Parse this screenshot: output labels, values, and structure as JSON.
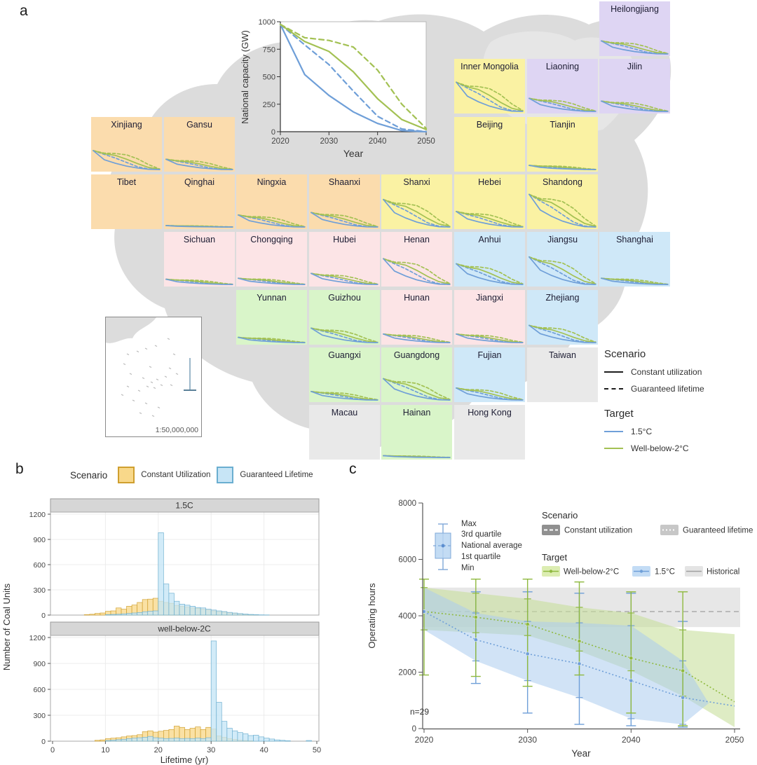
{
  "figure": {
    "panel_a_label": "a",
    "panel_b_label": "b",
    "panel_c_label": "c"
  },
  "panel_a": {
    "inset_map": {
      "scale_text": "1:50,000,000"
    },
    "legend": {
      "scenario_title": "Scenario",
      "scenario_items": [
        {
          "label": "Constant utilization",
          "style": "solid"
        },
        {
          "label": "Guaranteed lifetime",
          "style": "dashed"
        }
      ],
      "target_title": "Target",
      "target_items": [
        {
          "label": "1.5°C",
          "color": "#6f9fd8"
        },
        {
          "label": "Well-below-2°C",
          "color": "#a3c153"
        }
      ]
    },
    "region_colors": {
      "northeast": "#ded5f3",
      "north": "#faf2a3",
      "northwest": "#fbdcad",
      "central": "#fce4e6",
      "east": "#cfe8f8",
      "south": "#d9f5c9",
      "nodata": "#e9e9e9"
    },
    "tile_series": [
      {
        "name": "Well-below-2C Guaranteed lifetime",
        "color": "#a3c153",
        "dash": "4 3",
        "profile": [
          1,
          0.87,
          0.85,
          0.78,
          0.57,
          0.26,
          0.03
        ]
      },
      {
        "name": "1.5C Guaranteed lifetime",
        "color": "#6f9fd8",
        "dash": "4 3",
        "profile": [
          1,
          0.8,
          0.61,
          0.38,
          0.15,
          0.03,
          0
        ]
      },
      {
        "name": "Well-below-2C Constant utilization",
        "color": "#a3c153",
        "dash": "",
        "profile": [
          1,
          0.84,
          0.75,
          0.55,
          0.31,
          0.11,
          0.02
        ]
      },
      {
        "name": "1.5C Constant utilization",
        "color": "#6f9fd8",
        "dash": "",
        "profile": [
          1,
          0.52,
          0.33,
          0.18,
          0.08,
          0.01,
          0
        ]
      }
    ],
    "provinces": [
      {
        "name": "Heilongjiang",
        "region": "northeast",
        "row": 1,
        "col": 8,
        "amp": 0.38
      },
      {
        "name": "Inner Mongolia",
        "region": "north",
        "row": 2,
        "col": 6,
        "amp": 0.85
      },
      {
        "name": "Liaoning",
        "region": "northeast",
        "row": 2,
        "col": 7,
        "amp": 0.38
      },
      {
        "name": "Jilin",
        "region": "northeast",
        "row": 2,
        "col": 8,
        "amp": 0.3
      },
      {
        "name": "Xinjiang",
        "region": "northwest",
        "row": 3,
        "col": 1,
        "amp": 0.55
      },
      {
        "name": "Gansu",
        "region": "northwest",
        "row": 3,
        "col": 2,
        "amp": 0.3
      },
      {
        "name": "Beijing",
        "region": "north",
        "row": 3,
        "col": 6,
        "amp": 0
      },
      {
        "name": "Tianjin",
        "region": "north",
        "row": 3,
        "col": 7,
        "amp": 0.12
      },
      {
        "name": "Tibet",
        "region": "northwest",
        "row": 4,
        "col": 1,
        "amp": 0
      },
      {
        "name": "Qinghai",
        "region": "northwest",
        "row": 4,
        "col": 2,
        "amp": 0.04
      },
      {
        "name": "Ningxia",
        "region": "northwest",
        "row": 4,
        "col": 3,
        "amp": 0.35
      },
      {
        "name": "Shaanxi",
        "region": "northwest",
        "row": 4,
        "col": 4,
        "amp": 0.42
      },
      {
        "name": "Shanxi",
        "region": "north",
        "row": 4,
        "col": 5,
        "amp": 0.8
      },
      {
        "name": "Hebei",
        "region": "north",
        "row": 4,
        "col": 6,
        "amp": 0.45
      },
      {
        "name": "Shandong",
        "region": "north",
        "row": 4,
        "col": 7,
        "amp": 0.95
      },
      {
        "name": "Sichuan",
        "region": "central",
        "row": 5,
        "col": 2,
        "amp": 0.15
      },
      {
        "name": "Chongqing",
        "region": "central",
        "row": 5,
        "col": 3,
        "amp": 0.18
      },
      {
        "name": "Hubei",
        "region": "central",
        "row": 5,
        "col": 4,
        "amp": 0.32
      },
      {
        "name": "Henan",
        "region": "central",
        "row": 5,
        "col": 5,
        "amp": 0.75
      },
      {
        "name": "Anhui",
        "region": "east",
        "row": 5,
        "col": 6,
        "amp": 0.6
      },
      {
        "name": "Jiangsu",
        "region": "east",
        "row": 5,
        "col": 7,
        "amp": 0.8
      },
      {
        "name": "Shanghai",
        "region": "east",
        "row": 5,
        "col": 8,
        "amp": 0.18
      },
      {
        "name": "Yunnan",
        "region": "south",
        "row": 6,
        "col": 3,
        "amp": 0.15
      },
      {
        "name": "Guizhou",
        "region": "south",
        "row": 6,
        "col": 4,
        "amp": 0.42
      },
      {
        "name": "Hunan",
        "region": "central",
        "row": 6,
        "col": 5,
        "amp": 0.25
      },
      {
        "name": "Jiangxi",
        "region": "central",
        "row": 6,
        "col": 6,
        "amp": 0.25
      },
      {
        "name": "Zhejiang",
        "region": "east",
        "row": 6,
        "col": 7,
        "amp": 0.5
      },
      {
        "name": "Guangxi",
        "region": "south",
        "row": 7,
        "col": 4,
        "amp": 0.25
      },
      {
        "name": "Guangdong",
        "region": "south",
        "row": 7,
        "col": 5,
        "amp": 0.62
      },
      {
        "name": "Fujian",
        "region": "east",
        "row": 7,
        "col": 6,
        "amp": 0.35
      },
      {
        "name": "Taiwan",
        "region": "nodata",
        "row": 7,
        "col": 7,
        "amp": null
      },
      {
        "name": "Macau",
        "region": "nodata",
        "row": 8,
        "col": 4,
        "amp": null
      },
      {
        "name": "Hainan",
        "region": "south",
        "row": 8,
        "col": 5,
        "amp": 0.05
      },
      {
        "name": "Hong Kong",
        "region": "nodata",
        "row": 8,
        "col": 6,
        "amp": null
      }
    ]
  },
  "panel_b": {
    "legend_title": "Scenario",
    "legend_items": [
      {
        "label": "Constant Utilization",
        "color": "#f8d88a",
        "border": "#cf9f2f"
      },
      {
        "label": "Guaranteed Lifetime",
        "color": "#c7e5f6",
        "border": "#6aaed0"
      }
    ]
  },
  "panel_c": {
    "boxplot_legend": [
      "Max",
      "3rd quartile",
      "National average",
      "1st quartile",
      "Min"
    ],
    "scenario_title": "Scenario",
    "scenario_items": [
      "Constant utilization",
      "Guaranteed lifetime"
    ],
    "target_title": "Target",
    "target_items": [
      "Well-below-2°C",
      "1.5°C",
      "Historical"
    ],
    "n_label": "n=29"
  },
  "chart_data": [
    {
      "id": "national_capacity",
      "type": "line",
      "xlabel": "Year",
      "ylabel": "National capacity (GW)",
      "x": [
        2020,
        2025,
        2030,
        2035,
        2040,
        2045,
        2050
      ],
      "xlim": [
        2020,
        2050
      ],
      "ylim": [
        0,
        1000
      ],
      "xticks": [
        2020,
        2030,
        2040,
        2050
      ],
      "yticks": [
        0,
        250,
        500,
        750,
        1000
      ],
      "series": [
        {
          "name": "1.5C Constant utilization",
          "color": "#6f9fd8",
          "dash": "",
          "values": [
            975,
            520,
            330,
            180,
            75,
            10,
            0
          ]
        },
        {
          "name": "1.5C Guaranteed lifetime",
          "color": "#6f9fd8",
          "dash": "7 5",
          "values": [
            975,
            790,
            610,
            370,
            140,
            25,
            0
          ]
        },
        {
          "name": "Well-below-2C Constant utilization",
          "color": "#a3c153",
          "dash": "",
          "values": [
            975,
            820,
            730,
            545,
            300,
            110,
            20
          ]
        },
        {
          "name": "Well-below-2C Guaranteed lifetime",
          "color": "#a3c153",
          "dash": "7 5",
          "values": [
            975,
            855,
            830,
            770,
            560,
            250,
            30
          ]
        }
      ]
    },
    {
      "id": "lifetime_histogram_1.5C",
      "type": "bar",
      "facet": "1.5C",
      "xlabel": "Lifetime (yr)",
      "ylabel": "Number of Coal Units",
      "xlim": [
        0,
        50
      ],
      "ylim": [
        0,
        1200
      ],
      "xticks": [
        0,
        10,
        20,
        30,
        40,
        50
      ],
      "yticks": [
        0,
        300,
        600,
        900,
        1200
      ],
      "bin_width": 1,
      "series": [
        {
          "name": "Constant Utilization",
          "x_start": 6,
          "counts": [
            5,
            10,
            20,
            25,
            45,
            50,
            85,
            70,
            105,
            120,
            150,
            185,
            190,
            200,
            165,
            150,
            140,
            115,
            105,
            95,
            85,
            80,
            70,
            60,
            50,
            40,
            35,
            25,
            18,
            12,
            8,
            5,
            3
          ]
        },
        {
          "name": "Guaranteed Lifetime",
          "x_start": 10,
          "counts": [
            5,
            8,
            10,
            15,
            20,
            25,
            30,
            40,
            45,
            50,
            980,
            370,
            260,
            165,
            130,
            118,
            105,
            90,
            85,
            70,
            60,
            50,
            42,
            32,
            25,
            18,
            12,
            8,
            5,
            3,
            2
          ]
        }
      ]
    },
    {
      "id": "lifetime_histogram_well-below-2C",
      "type": "bar",
      "facet": "well-below-2C",
      "xlabel": "Lifetime (yr)",
      "ylabel": "Number of Coal Units",
      "xlim": [
        0,
        50
      ],
      "ylim": [
        0,
        1200
      ],
      "xticks": [
        0,
        10,
        20,
        30,
        40,
        50
      ],
      "yticks": [
        0,
        300,
        600,
        900,
        1200
      ],
      "bin_width": 1,
      "series": [
        {
          "name": "Constant Utilization",
          "x_start": 8,
          "counts": [
            10,
            15,
            30,
            35,
            40,
            50,
            60,
            65,
            75,
            110,
            120,
            105,
            115,
            125,
            135,
            175,
            160,
            135,
            150,
            165,
            135,
            160,
            140,
            60,
            45,
            30,
            20,
            12,
            8,
            5
          ]
        },
        {
          "name": "Guaranteed Lifetime",
          "x_start": 10,
          "counts": [
            8,
            12,
            18,
            22,
            30,
            35,
            40,
            45,
            55,
            40,
            35,
            30,
            32,
            35,
            30,
            32,
            30,
            35,
            30,
            40,
            1160,
            450,
            230,
            150,
            120,
            100,
            85,
            65,
            70,
            50,
            35,
            25,
            15,
            10,
            5,
            0,
            0,
            0,
            8
          ]
        }
      ]
    },
    {
      "id": "operating_hours",
      "type": "line-band",
      "xlabel": "Year",
      "ylabel": "Operating hours",
      "xlim": [
        2020,
        2050
      ],
      "ylim": [
        0,
        8000
      ],
      "xticks": [
        2020,
        2030,
        2040,
        2050
      ],
      "yticks": [
        0,
        2000,
        4000,
        6000,
        8000
      ],
      "n": 29,
      "historical": {
        "band_low": 3600,
        "band_high": 5000,
        "average": 4150
      },
      "years": [
        2020,
        2025,
        2030,
        2035,
        2040,
        2045,
        2050
      ],
      "series": [
        {
          "name": "Well-below-2°C",
          "color": "#8fb93f",
          "band_color": "#c8e09c",
          "avg": [
            4150,
            3950,
            3700,
            3100,
            2500,
            2050,
            950
          ],
          "min": [
            1900,
            1850,
            1500,
            1900,
            550,
            100,
            null
          ],
          "max": [
            5300,
            5300,
            5300,
            5200,
            4850,
            4850,
            null
          ],
          "q1": [
            3500,
            3400,
            3300,
            2750,
            2050,
            1150,
            50
          ],
          "q3": [
            5000,
            4800,
            4600,
            4300,
            4100,
            3500,
            3350
          ]
        },
        {
          "name": "1.5°C",
          "color": "#6f9fd8",
          "band_color": "#abccee",
          "avg": [
            4150,
            3150,
            2650,
            2300,
            1700,
            1100,
            800
          ],
          "min": [
            null,
            1600,
            550,
            150,
            100,
            50,
            null
          ],
          "max": [
            null,
            4850,
            4850,
            4800,
            4800,
            3800,
            null
          ],
          "q1": [
            3500,
            2400,
            1700,
            1100,
            350,
            150,
            null
          ],
          "q3": [
            5000,
            4100,
            3800,
            3750,
            3650,
            2400,
            null
          ]
        }
      ]
    }
  ]
}
